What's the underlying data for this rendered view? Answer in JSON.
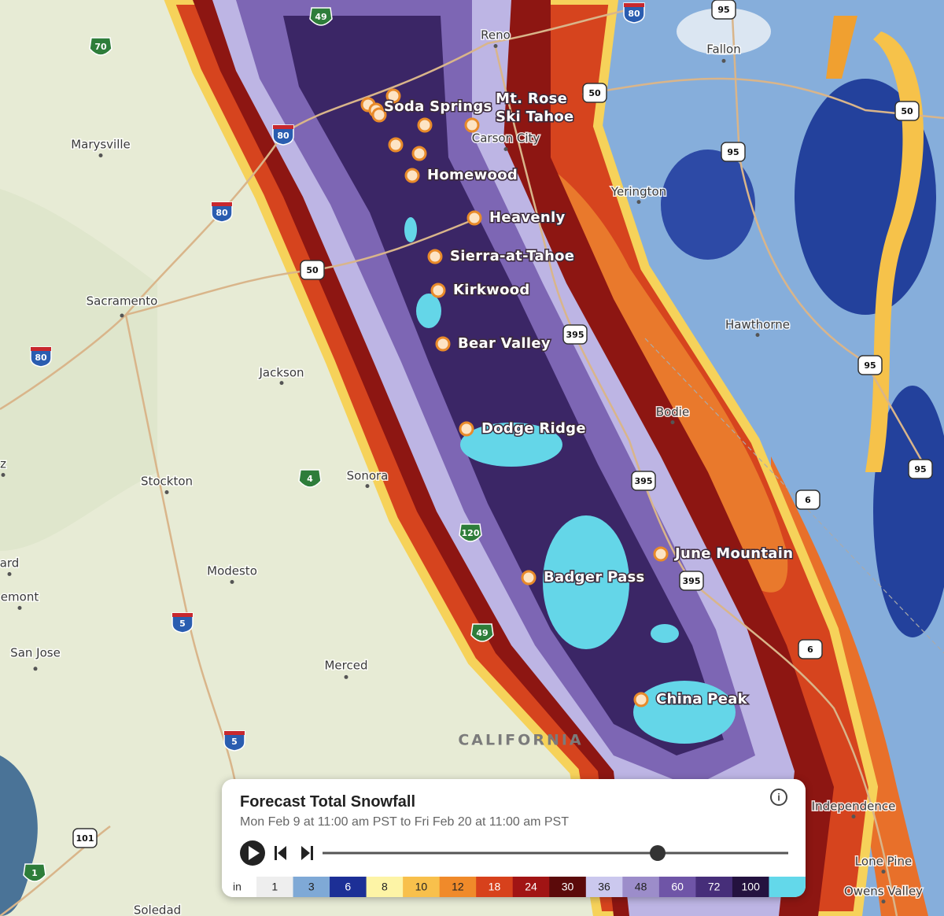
{
  "map": {
    "places": [
      "Reno",
      "Fallon",
      "Carson City",
      "Marysville",
      "Yerington",
      "Sacramento",
      "Hawthorne",
      "Jackson",
      "Bodie",
      "Stockton",
      "Sonora",
      "Modesto",
      "Merced",
      "San Jose",
      "Independence",
      "Lone Pine",
      "Owens Valley",
      "Soledad",
      "ard",
      "emont",
      "z"
    ],
    "resorts": [
      [
        "Soda Springs"
      ],
      [
        "Mt. Rose",
        "Ski Tahoe"
      ],
      [
        "Homewood"
      ],
      [
        "Heavenly"
      ],
      [
        "Sierra-at-Tahoe"
      ],
      [
        "Kirkwood"
      ],
      [
        "Bear Valley"
      ],
      [
        "Dodge Ridge"
      ],
      [
        "June Mountain"
      ],
      [
        "Badger Pass"
      ],
      [
        "China Peak"
      ]
    ],
    "highways": [
      49,
      70,
      80,
      95,
      50,
      50,
      80,
      95,
      80,
      50,
      395,
      95,
      80,
      395,
      95,
      6,
      4,
      120,
      395,
      6,
      49,
      5,
      5,
      101,
      1
    ],
    "region_label": "CALIFORNIA"
  },
  "panel": {
    "title": "Forecast Total Snowfall",
    "subtitle": "Mon Feb 9 at 11:00 am PST to Fri Feb 20 at 11:00 am PST",
    "legend": {
      "unit": "in",
      "labels": [
        1,
        3,
        6,
        8,
        10,
        12,
        18,
        24,
        30,
        36,
        48,
        60,
        72,
        100
      ]
    }
  }
}
